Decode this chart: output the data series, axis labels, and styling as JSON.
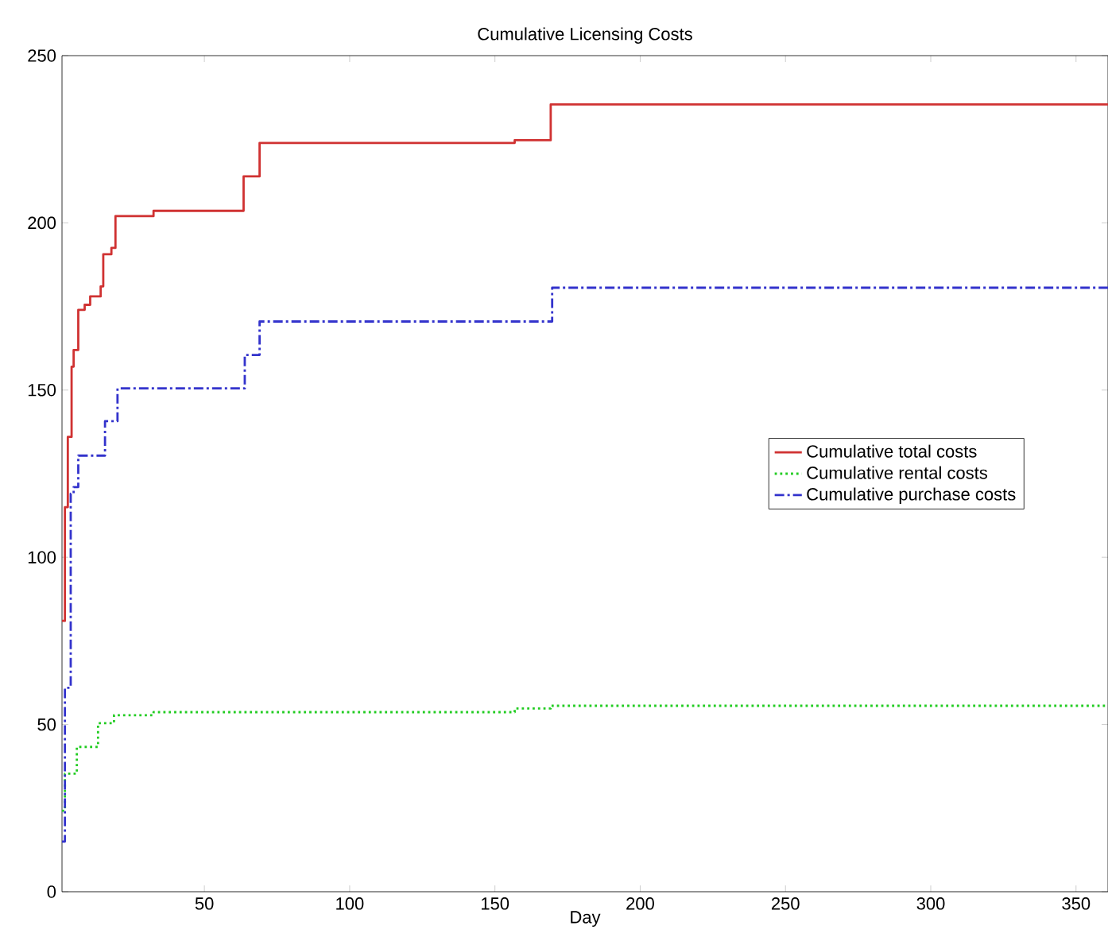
{
  "chart_data": {
    "type": "step",
    "title": "Cumulative Licensing Costs",
    "xlabel": "Day",
    "xlim": [
      1,
      361
    ],
    "ylim": [
      0,
      250
    ],
    "xticks": [
      50,
      100,
      150,
      200,
      250,
      300,
      350
    ],
    "yticks": [
      0,
      50,
      100,
      150,
      200,
      250
    ],
    "legend": "right",
    "grid": false,
    "marker": "none",
    "series": [
      {
        "name": "Cumulative total costs",
        "color": "#d03232",
        "line_style": "solid",
        "x": [
          1,
          2,
          3,
          4.3,
          5,
          6.6,
          8.8,
          10.7,
          14.3,
          15.2,
          18,
          19.4,
          32.5,
          62.6,
          63.5,
          68,
          69,
          156.8,
          169.2,
          361
        ],
        "values": [
          81,
          115,
          136,
          157,
          162,
          174,
          175.5,
          178,
          181,
          190.6,
          192.5,
          202,
          203.6,
          203.6,
          213.9,
          213.9,
          223.9,
          224.7,
          235.4,
          235.4
        ]
      },
      {
        "name": "Cumulative rental costs",
        "color": "#22cc22",
        "line_style": "dotted",
        "x": [
          1,
          2,
          6.1,
          13.4,
          18.9,
          32.5,
          156.8,
          169.2,
          361
        ],
        "values": [
          24.2,
          35.3,
          43.3,
          50.4,
          52.8,
          53.7,
          54.8,
          55.6,
          55.6
        ]
      },
      {
        "name": "Cumulative purchase costs",
        "color": "#3333cc",
        "line_style": "dashdot",
        "x": [
          1,
          2,
          4,
          5,
          6.6,
          15.8,
          20.1,
          63.9,
          69,
          169.7,
          361
        ],
        "values": [
          15,
          61,
          119,
          121,
          130.4,
          140.7,
          150.5,
          160.5,
          170.5,
          180.6,
          180.6
        ]
      }
    ]
  }
}
